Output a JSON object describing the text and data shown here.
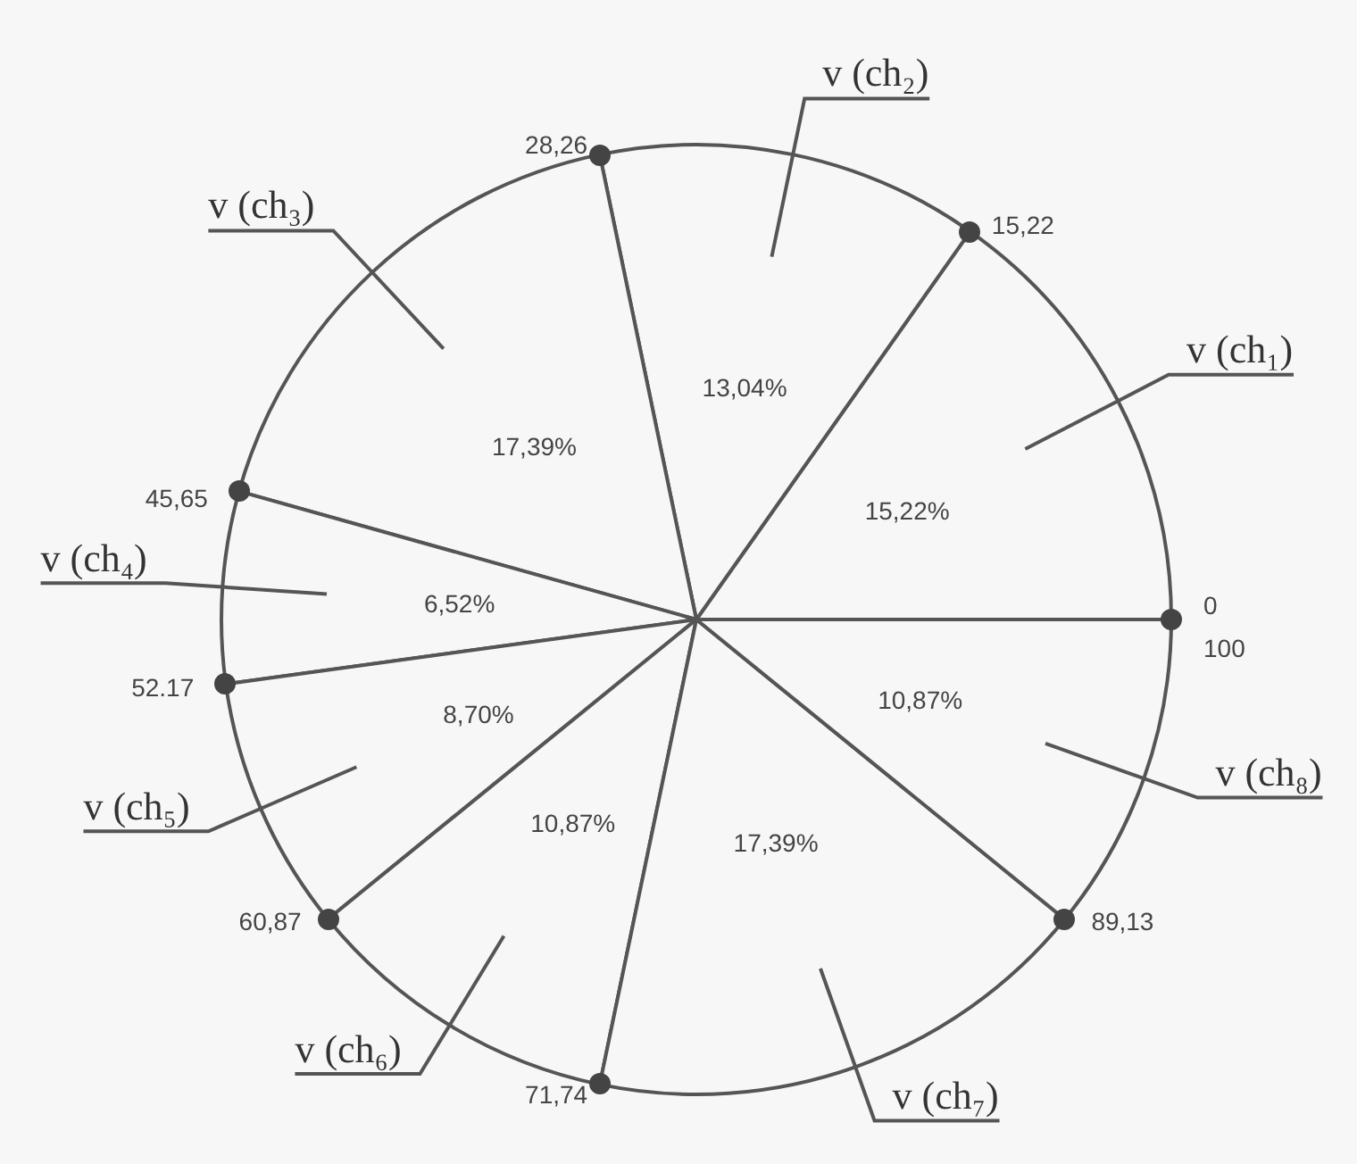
{
  "chart_data": {
    "type": "pie",
    "categories": [
      "v (ch₁)",
      "v (ch₂)",
      "v (ch₃)",
      "v (ch₄)",
      "v (ch₅)",
      "v (ch₆)",
      "v (ch₇)",
      "v (ch₈)"
    ],
    "values": [
      15.22,
      13.04,
      17.39,
      6.52,
      8.7,
      10.87,
      17.39,
      10.87
    ],
    "value_labels": [
      "15,22%",
      "13,04%",
      "17,39%",
      "6,52%",
      "8,70%",
      "10,87%",
      "17,39%",
      "10,87%"
    ],
    "colors": [
      "#f7f7f7",
      "#f7f7f7",
      "#f7f7f7",
      "#f7f7f7",
      "#f7f7f7",
      "#f7f7f7",
      "#f7f7f7",
      "#f7f7f7"
    ],
    "annotations": [
      "0",
      "15,22",
      "28,26",
      "45,65",
      "52.17",
      "60,87",
      "71,74",
      "89,13",
      "100"
    ],
    "legend": false
  }
}
